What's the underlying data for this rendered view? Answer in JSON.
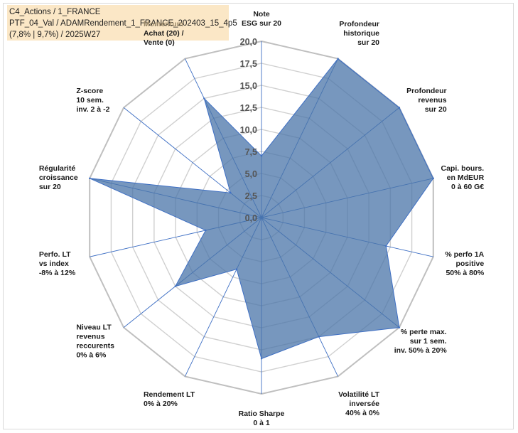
{
  "title_box": {
    "line1": "C4_Actions / 1_FRANCE",
    "line2": "PTF_04_Val / ADAMRendement_1_FRANCE_202403_15_4p5",
    "line3": "(7,8% | 9,7%) / 2025W27",
    "background": "#fbe7c6"
  },
  "chart_data": {
    "type": "radar",
    "r_min": 0,
    "r_max": 20,
    "r_ticks": [
      "0,0",
      "2,5",
      "5,0",
      "7,5",
      "10,0",
      "12,5",
      "15,0",
      "17,5",
      "20,0"
    ],
    "tick_values": [
      0,
      2.5,
      5,
      7.5,
      10,
      12.5,
      15,
      17.5,
      20
    ],
    "grid": true,
    "fill_color": "#4a74a8",
    "line_color": "#3e6fc4",
    "axes": [
      {
        "label": [
          "Note",
          "ESG sur 20"
        ],
        "value": 7
      },
      {
        "label": [
          "Profondeur",
          "historique",
          "sur 20"
        ],
        "value": 20
      },
      {
        "label": [
          "Profondeur",
          "revenus",
          "sur 20"
        ],
        "value": 20
      },
      {
        "label": [
          "Capi. bours.",
          "en MdEUR",
          "0 à 60 G€"
        ],
        "value": 20
      },
      {
        "label": [
          "% perfo 1A",
          "positive",
          "50% à 80%"
        ],
        "value": 14.5
      },
      {
        "label": [
          "% perte max.",
          "sur 1 sem.",
          "inv. 50% à 20%"
        ],
        "value": 20
      },
      {
        "label": [
          "Volatilité LT",
          "inversée",
          "40% à 0%"
        ],
        "value": 15
      },
      {
        "label": [
          "Ratio Sharpe",
          "0 à 1"
        ],
        "value": 16
      },
      {
        "label": [
          "Rendement LT",
          "0% à 20%"
        ],
        "value": 6.5
      },
      {
        "label": [
          "Niveau LT",
          "revenus",
          "reccurents",
          "0% à 6%"
        ],
        "value": 12.5
      },
      {
        "label": [
          "Perfo. LT",
          "vs index",
          "-8% à 12%"
        ],
        "value": 6.5
      },
      {
        "label": [
          "Régularité",
          "croissance",
          "sur 20"
        ],
        "value": 20
      },
      {
        "label": [
          "Z-score",
          "10 sem.",
          "inv. 2 à -2"
        ],
        "value": 4.5
      },
      {
        "label": [
          "Momentum",
          "Achat (20) /",
          "Vente (0)"
        ],
        "value": 15
      }
    ]
  }
}
